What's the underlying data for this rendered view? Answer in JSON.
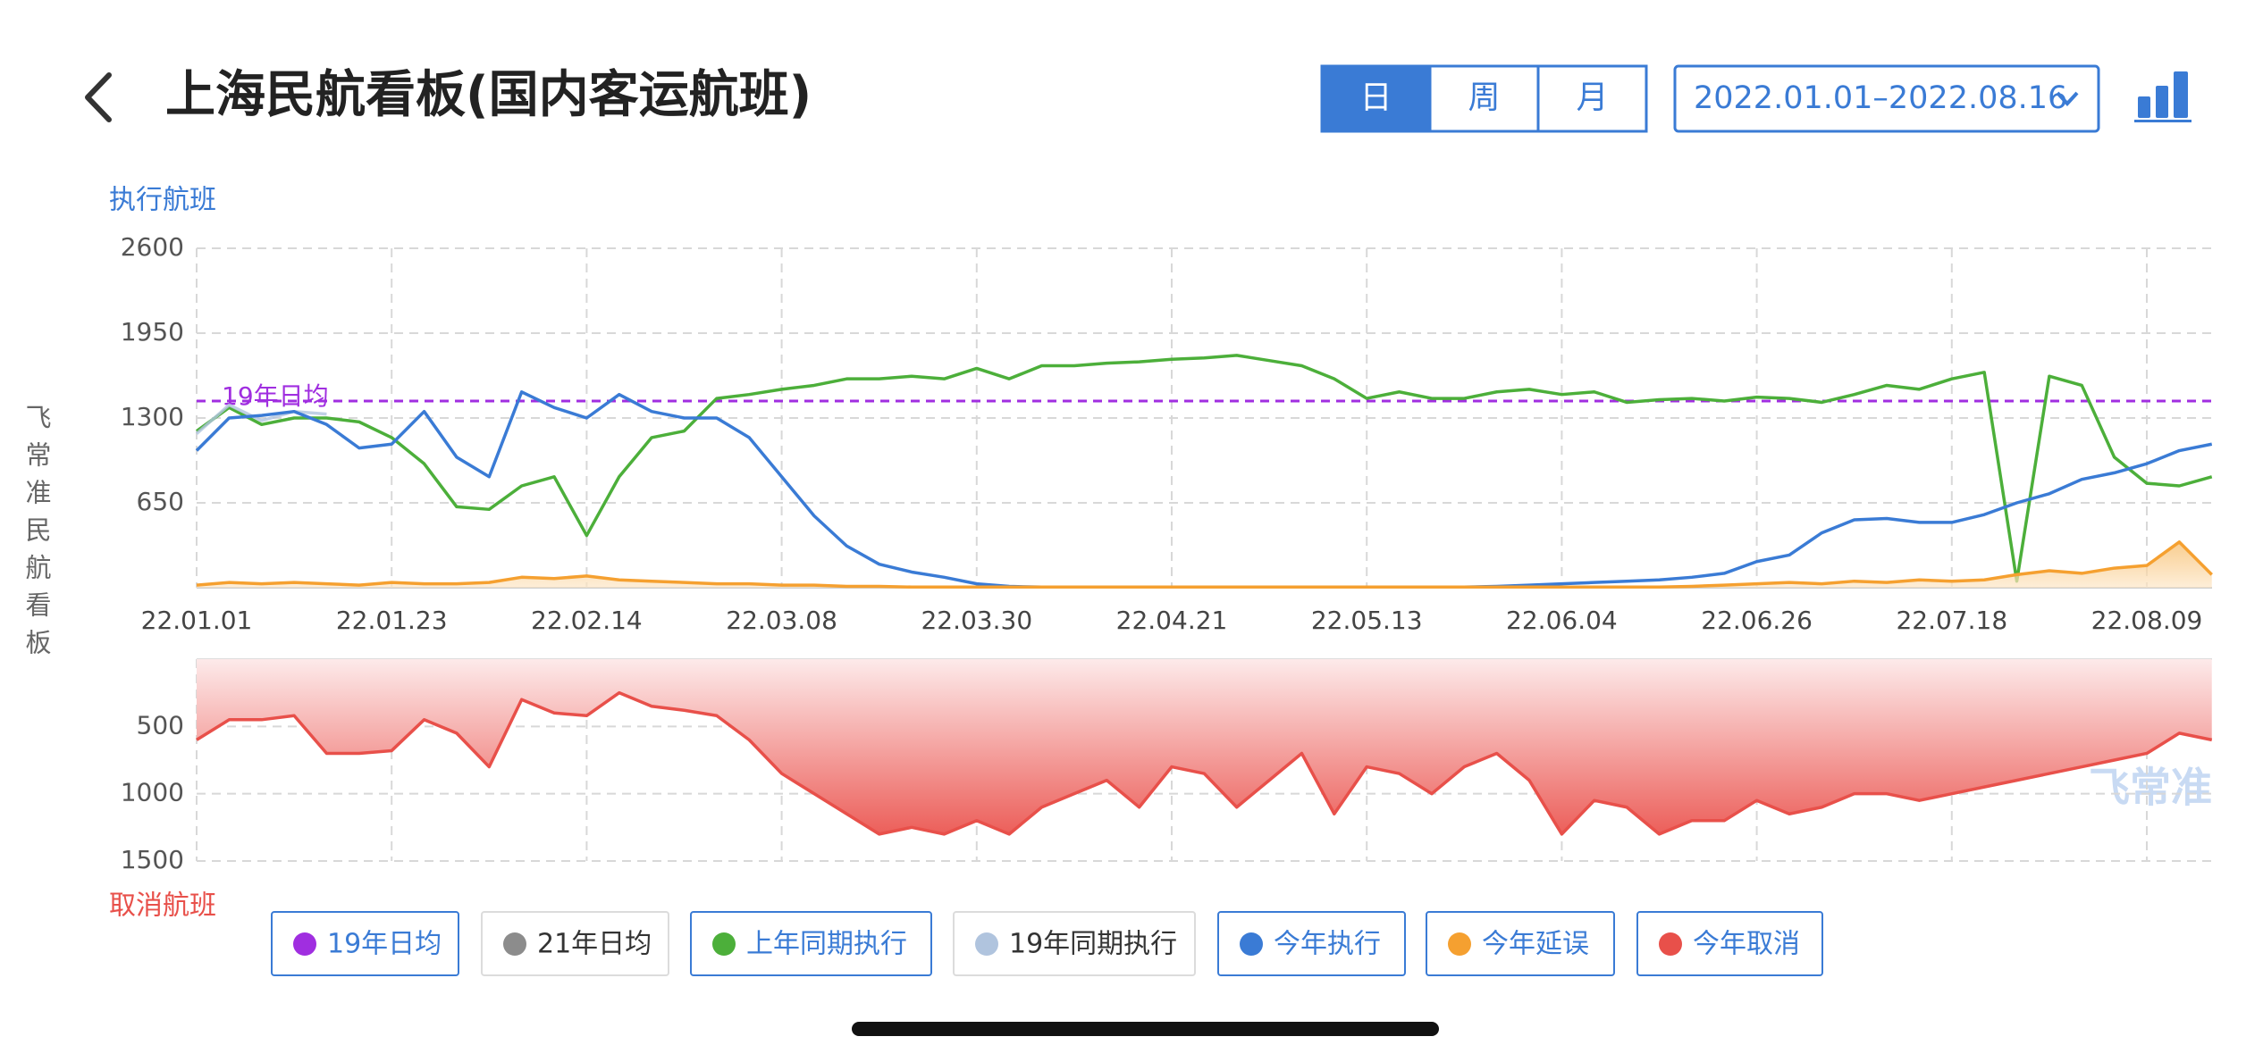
{
  "header": {
    "title": "上海民航看板(国内客运航班)",
    "tabs": [
      "日",
      "周",
      "月"
    ],
    "active_tab": 0,
    "date_range": "2022.01.01–2022.08.16"
  },
  "side_label": "飞常准民航看板",
  "watermark": "飞常准",
  "chart_data": [
    {
      "type": "line",
      "y_title": "执行航班",
      "categories": [
        "22.01.01",
        null,
        null,
        null,
        null,
        null,
        "22.01.23",
        null,
        null,
        null,
        null,
        null,
        "22.02.14",
        null,
        null,
        null,
        null,
        null,
        "22.03.08",
        null,
        null,
        null,
        null,
        null,
        "22.03.30",
        null,
        null,
        null,
        null,
        null,
        "22.04.21",
        null,
        null,
        null,
        null,
        null,
        "22.05.13",
        null,
        null,
        null,
        null,
        null,
        "22.06.04",
        null,
        null,
        null,
        null,
        null,
        "22.06.26",
        null,
        null,
        null,
        null,
        null,
        "22.07.18",
        null,
        null,
        null,
        null,
        null,
        "22.08.09",
        null,
        null
      ],
      "ylim": [
        0,
        2600
      ],
      "yticks": [
        650,
        1300,
        1950,
        2600
      ],
      "grid": true,
      "series": [
        {
          "name": "19年日均",
          "color": "#a02ee0",
          "active": true,
          "type": "hline",
          "value": 1430
        },
        {
          "name": "21年日均",
          "color": "#8c8c8c",
          "active": false
        },
        {
          "name": "上年同期执行",
          "color": "#4caf3a",
          "active": true,
          "values": [
            1200,
            1380,
            1250,
            1300,
            1300,
            1270,
            1150,
            950,
            620,
            600,
            780,
            850,
            400,
            850,
            1150,
            1200,
            1450,
            1480,
            1520,
            1550,
            1600,
            1600,
            1620,
            1600,
            1680,
            1600,
            1700,
            1700,
            1720,
            1730,
            1750,
            1760,
            1780,
            1740,
            1700,
            1600,
            1450,
            1500,
            1450,
            1450,
            1500,
            1520,
            1480,
            1500,
            1420,
            1440,
            1450,
            1430,
            1460,
            1450,
            1420,
            1480,
            1550,
            1520,
            1600,
            1650,
            50,
            1620,
            1550,
            1000,
            800,
            780,
            850
          ]
        },
        {
          "name": "19年同期执行",
          "color": "#b0c4de",
          "active": false,
          "values": [
            1180,
            1400,
            1280,
            1350,
            1330,
            null,
            null,
            null,
            null,
            null,
            null,
            null,
            null,
            null,
            null,
            null,
            null,
            null,
            null,
            null,
            null,
            null,
            null,
            null,
            null,
            null,
            null,
            null,
            null,
            null,
            null,
            null,
            null,
            null,
            null,
            null,
            null,
            null,
            null,
            null,
            null,
            null,
            null,
            null,
            null,
            null,
            null,
            null,
            null,
            null,
            null,
            null,
            null,
            null,
            null,
            null,
            null,
            null,
            null,
            null,
            null,
            null,
            null
          ]
        },
        {
          "name": "今年执行",
          "color": "#3a7bd5",
          "active": true,
          "values": [
            1050,
            1300,
            1320,
            1350,
            1250,
            1070,
            1100,
            1350,
            1000,
            850,
            1500,
            1380,
            1300,
            1480,
            1350,
            1300,
            1300,
            1150,
            850,
            550,
            320,
            180,
            120,
            80,
            30,
            10,
            5,
            5,
            5,
            5,
            5,
            5,
            5,
            5,
            5,
            5,
            5,
            5,
            5,
            5,
            10,
            20,
            30,
            40,
            50,
            60,
            80,
            110,
            200,
            250,
            420,
            520,
            530,
            500,
            500,
            560,
            650,
            720,
            830,
            880,
            950,
            1050,
            1100
          ]
        },
        {
          "name": "今年延误",
          "color": "#f5a030",
          "active": true,
          "area": true,
          "values": [
            20,
            40,
            30,
            40,
            30,
            20,
            40,
            30,
            30,
            40,
            80,
            70,
            90,
            60,
            50,
            40,
            30,
            30,
            20,
            20,
            10,
            10,
            5,
            5,
            5,
            5,
            5,
            5,
            5,
            5,
            5,
            5,
            5,
            5,
            5,
            5,
            5,
            5,
            5,
            5,
            5,
            5,
            5,
            5,
            5,
            5,
            10,
            20,
            30,
            40,
            30,
            50,
            40,
            60,
            50,
            60,
            100,
            130,
            110,
            150,
            170,
            350,
            100
          ]
        }
      ]
    },
    {
      "type": "area",
      "y_title": "取消航班",
      "ylim": [
        0,
        1500
      ],
      "inverted": true,
      "yticks": [
        500,
        1000,
        1500
      ],
      "grid": true,
      "series": [
        {
          "name": "今年取消",
          "color": "#e8504a",
          "active": true,
          "values": [
            600,
            450,
            450,
            420,
            700,
            700,
            680,
            450,
            550,
            800,
            300,
            400,
            420,
            250,
            350,
            380,
            420,
            600,
            850,
            1000,
            1150,
            1300,
            1250,
            1300,
            1200,
            1300,
            1100,
            1000,
            900,
            1100,
            800,
            850,
            1100,
            900,
            700,
            1150,
            800,
            850,
            1000,
            800,
            700,
            900,
            1300,
            1050,
            1100,
            1300,
            1200,
            1200,
            1050,
            1150,
            1100,
            1000,
            1000,
            1050,
            1000,
            950,
            900,
            850,
            800,
            750,
            700,
            550,
            600
          ]
        }
      ]
    }
  ]
}
